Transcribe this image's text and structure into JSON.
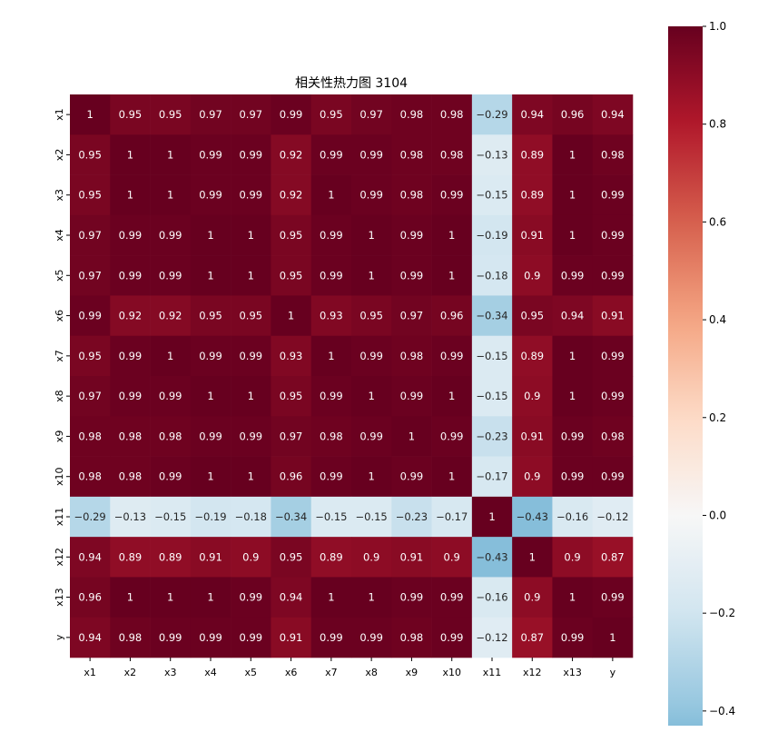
{
  "chart_data": {
    "type": "heatmap",
    "title": "相关性热力图 3104",
    "xlabel": "",
    "ylabel": "",
    "labels": [
      "x1",
      "x2",
      "x3",
      "x4",
      "x5",
      "x6",
      "x7",
      "x8",
      "x9",
      "x10",
      "x11",
      "x12",
      "x13",
      "y"
    ],
    "matrix": [
      [
        "1",
        "0.95",
        "0.95",
        "0.97",
        "0.97",
        "0.99",
        "0.95",
        "0.97",
        "0.98",
        "0.98",
        "-0.29",
        "0.94",
        "0.96",
        "0.94"
      ],
      [
        "0.95",
        "1",
        "1",
        "0.99",
        "0.99",
        "0.92",
        "0.99",
        "0.99",
        "0.98",
        "0.98",
        "-0.13",
        "0.89",
        "1",
        "0.98"
      ],
      [
        "0.95",
        "1",
        "1",
        "0.99",
        "0.99",
        "0.92",
        "1",
        "0.99",
        "0.98",
        "0.99",
        "-0.15",
        "0.89",
        "1",
        "0.99"
      ],
      [
        "0.97",
        "0.99",
        "0.99",
        "1",
        "1",
        "0.95",
        "0.99",
        "1",
        "0.99",
        "1",
        "-0.19",
        "0.91",
        "1",
        "0.99"
      ],
      [
        "0.97",
        "0.99",
        "0.99",
        "1",
        "1",
        "0.95",
        "0.99",
        "1",
        "0.99",
        "1",
        "-0.18",
        "0.9",
        "0.99",
        "0.99"
      ],
      [
        "0.99",
        "0.92",
        "0.92",
        "0.95",
        "0.95",
        "1",
        "0.93",
        "0.95",
        "0.97",
        "0.96",
        "-0.34",
        "0.95",
        "0.94",
        "0.91"
      ],
      [
        "0.95",
        "0.99",
        "1",
        "0.99",
        "0.99",
        "0.93",
        "1",
        "0.99",
        "0.98",
        "0.99",
        "-0.15",
        "0.89",
        "1",
        "0.99"
      ],
      [
        "0.97",
        "0.99",
        "0.99",
        "1",
        "1",
        "0.95",
        "0.99",
        "1",
        "0.99",
        "1",
        "-0.15",
        "0.9",
        "1",
        "0.99"
      ],
      [
        "0.98",
        "0.98",
        "0.98",
        "0.99",
        "0.99",
        "0.97",
        "0.98",
        "0.99",
        "1",
        "0.99",
        "-0.23",
        "0.91",
        "0.99",
        "0.98"
      ],
      [
        "0.98",
        "0.98",
        "0.99",
        "1",
        "1",
        "0.96",
        "0.99",
        "1",
        "0.99",
        "1",
        "-0.17",
        "0.9",
        "0.99",
        "0.99"
      ],
      [
        "-0.29",
        "-0.13",
        "-0.15",
        "-0.19",
        "-0.18",
        "-0.34",
        "-0.15",
        "-0.15",
        "-0.23",
        "-0.17",
        "1",
        "-0.43",
        "-0.16",
        "-0.12"
      ],
      [
        "0.94",
        "0.89",
        "0.89",
        "0.91",
        "0.9",
        "0.95",
        "0.89",
        "0.9",
        "0.91",
        "0.9",
        "-0.43",
        "1",
        "0.9",
        "0.87"
      ],
      [
        "0.96",
        "1",
        "1",
        "1",
        "0.99",
        "0.94",
        "1",
        "1",
        "0.99",
        "0.99",
        "-0.16",
        "0.9",
        "1",
        "0.99"
      ],
      [
        "0.94",
        "0.98",
        "0.99",
        "0.99",
        "0.99",
        "0.91",
        "0.99",
        "0.99",
        "0.98",
        "0.99",
        "-0.12",
        "0.87",
        "0.99",
        "1"
      ]
    ],
    "colorbar": {
      "min": -0.43,
      "max": 1.0,
      "ticks": [
        "1.0",
        "0.8",
        "0.6",
        "0.4",
        "0.2",
        "0.0",
        "−0.2",
        "−0.4"
      ],
      "tick_values": [
        1.0,
        0.8,
        0.6,
        0.4,
        0.2,
        0.0,
        -0.2,
        -0.4
      ],
      "colormap": "RdBu_r"
    }
  }
}
